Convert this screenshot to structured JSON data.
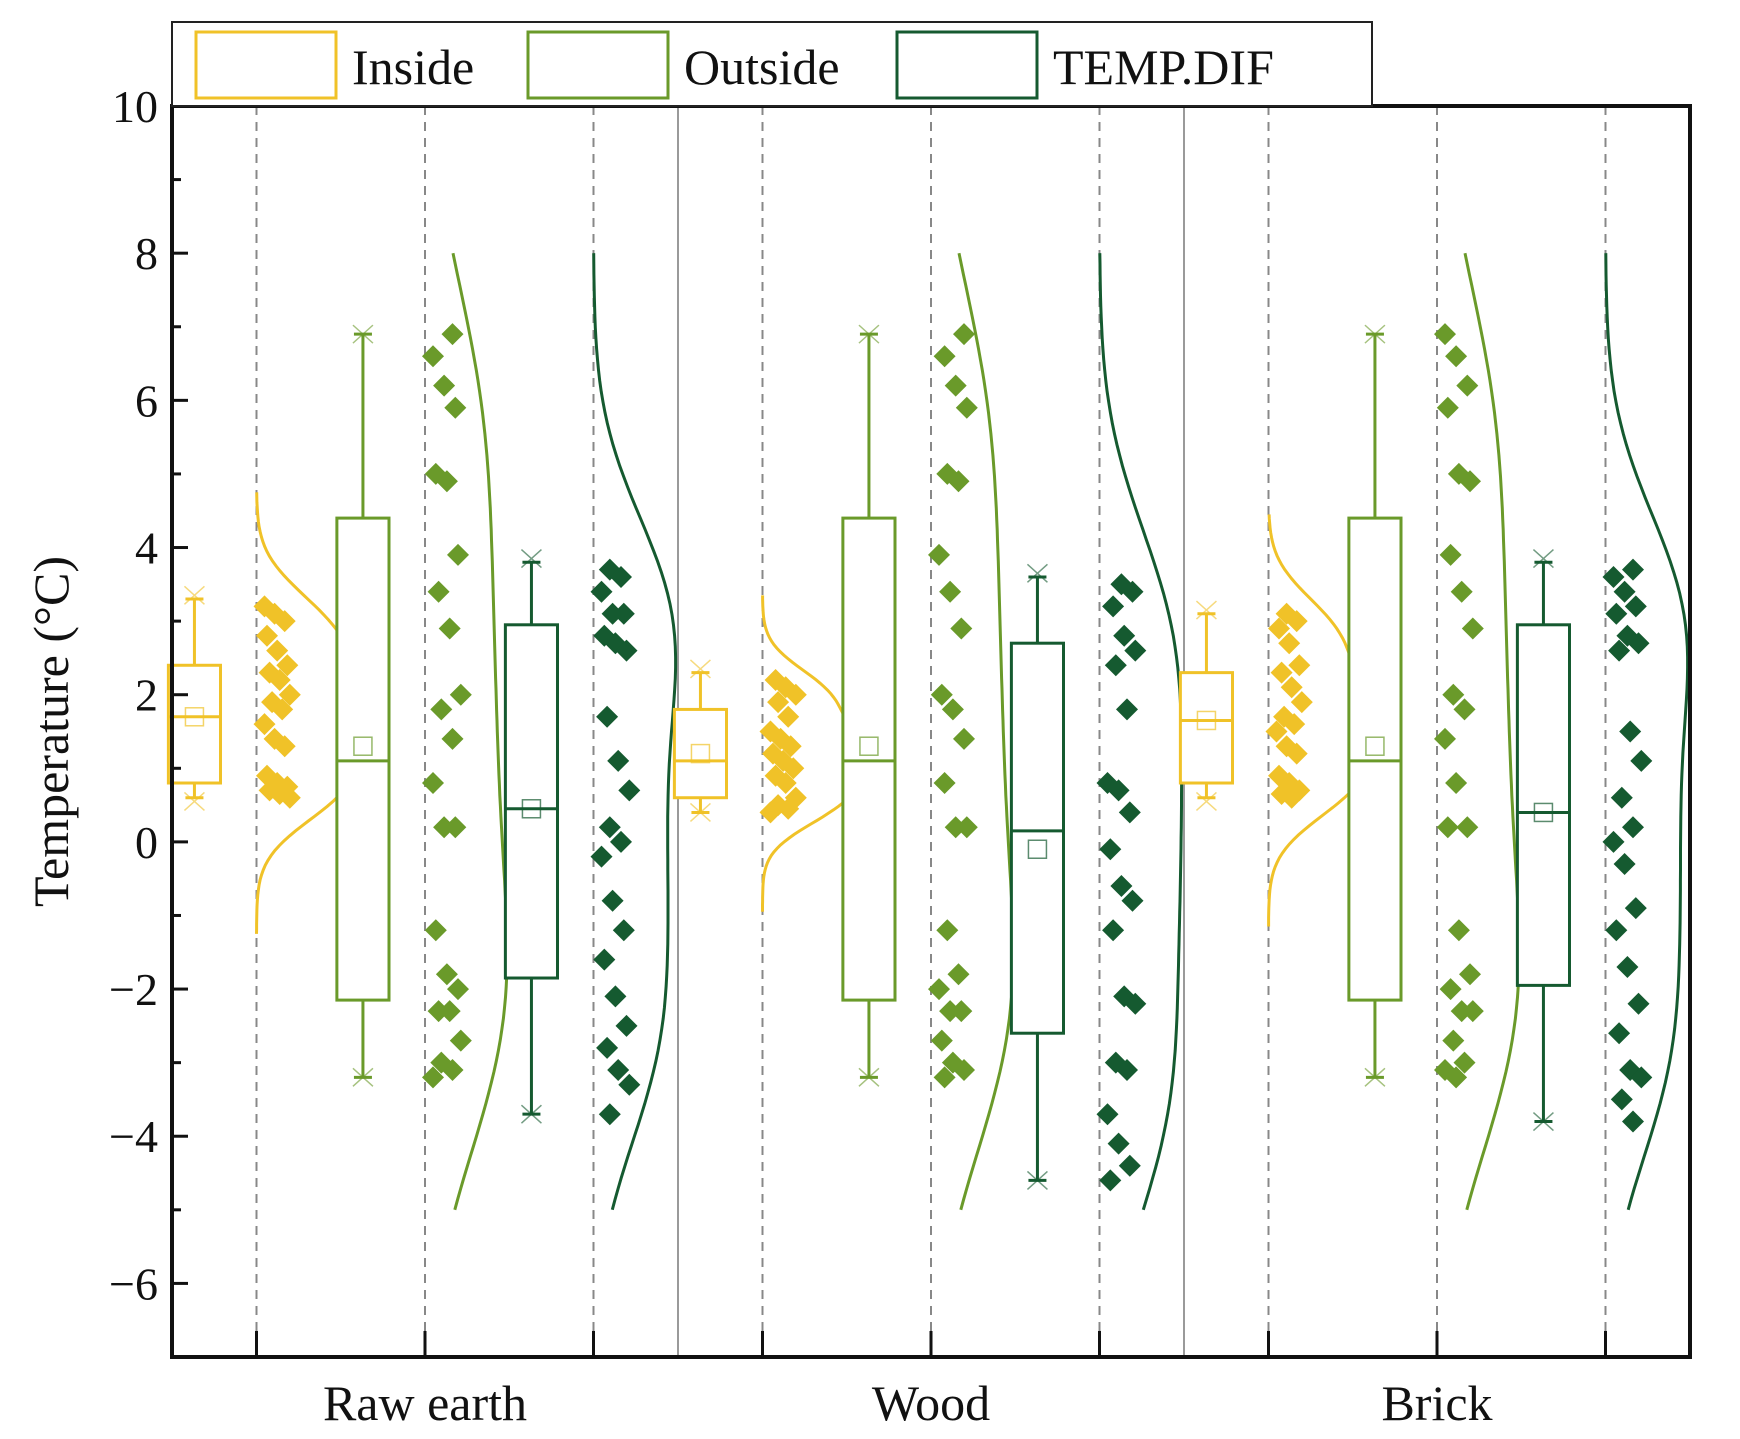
{
  "chart_data": {
    "type": "raincloud_box",
    "ylabel": "Temperature (°C)",
    "xlabel": "",
    "ylim": [
      -7,
      10
    ],
    "yticks": [
      -6,
      -4,
      -2,
      0,
      2,
      4,
      6,
      8,
      10
    ],
    "ytick_labels": [
      "−6",
      "−4",
      "−2",
      "0",
      "2",
      "4",
      "6",
      "8",
      "10"
    ],
    "categories": [
      "Raw earth",
      "Wood",
      "Brick"
    ],
    "legend": {
      "position": "top",
      "entries": [
        "Inside",
        "Outside",
        "TEMP.DIF"
      ]
    },
    "colors": {
      "Inside": "#f0c228",
      "Outside": "#6a9a2a",
      "TEMP.DIF": "#155a30"
    },
    "groups": [
      {
        "category": "Raw earth",
        "series": [
          {
            "name": "Inside",
            "box": {
              "q1": 0.8,
              "median": 1.7,
              "q3": 2.4,
              "whisker_low": 0.6,
              "whisker_high": 3.3,
              "mean": 1.7,
              "min": 0.55,
              "max": 3.35
            },
            "points": [
              3.2,
              3.1,
              3.0,
              2.8,
              2.6,
              2.4,
              2.3,
              2.2,
              2.0,
              1.9,
              1.8,
              1.6,
              1.4,
              1.3,
              0.9,
              0.8,
              0.75,
              0.7,
              0.65,
              0.6
            ],
            "density_range": [
              -1.25,
              4.75
            ]
          },
          {
            "name": "Outside",
            "box": {
              "q1": -2.15,
              "median": 1.1,
              "q3": 4.4,
              "whisker_low": -3.2,
              "whisker_high": 6.9,
              "mean": 1.3,
              "min": -3.2,
              "max": 6.9
            },
            "points": [
              6.9,
              6.6,
              6.2,
              5.9,
              5.0,
              4.9,
              3.9,
              3.4,
              2.9,
              2.0,
              1.8,
              1.4,
              0.8,
              0.2,
              0.2,
              -1.2,
              -1.8,
              -2.0,
              -2.3,
              -2.3,
              -2.7,
              -3.0,
              -3.1,
              -3.2
            ],
            "density_range": [
              -5.0,
              8.0
            ]
          },
          {
            "name": "TEMP.DIF",
            "box": {
              "q1": -1.85,
              "median": 0.45,
              "q3": 2.95,
              "whisker_low": -3.7,
              "whisker_high": 3.8,
              "mean": 0.45,
              "min": -3.7,
              "max": 3.85
            },
            "points": [
              3.7,
              3.6,
              3.4,
              3.1,
              3.1,
              2.8,
              2.7,
              2.6,
              1.7,
              1.1,
              0.7,
              0.2,
              0.0,
              -0.2,
              -0.8,
              -1.2,
              -1.6,
              -2.1,
              -2.5,
              -2.8,
              -3.1,
              -3.3,
              -3.7
            ],
            "density_range": [
              -5.0,
              8.0
            ]
          }
        ]
      },
      {
        "category": "Wood",
        "series": [
          {
            "name": "Inside",
            "box": {
              "q1": 0.6,
              "median": 1.1,
              "q3": 1.8,
              "whisker_low": 0.4,
              "whisker_high": 2.3,
              "mean": 1.2,
              "min": 0.4,
              "max": 2.35
            },
            "points": [
              2.2,
              2.1,
              2.0,
              1.9,
              1.7,
              1.5,
              1.4,
              1.3,
              1.2,
              1.1,
              1.0,
              0.9,
              0.8,
              0.6,
              0.5,
              0.45,
              0.4
            ],
            "density_range": [
              -0.95,
              3.35
            ]
          },
          {
            "name": "Outside",
            "box": {
              "q1": -2.15,
              "median": 1.1,
              "q3": 4.4,
              "whisker_low": -3.2,
              "whisker_high": 6.9,
              "mean": 1.3,
              "min": -3.2,
              "max": 6.9
            },
            "points": [
              6.9,
              6.6,
              6.2,
              5.9,
              5.0,
              4.9,
              3.9,
              3.4,
              2.9,
              2.0,
              1.8,
              1.4,
              0.8,
              0.2,
              0.2,
              -1.2,
              -1.8,
              -2.0,
              -2.3,
              -2.3,
              -2.7,
              -3.0,
              -3.1,
              -3.2
            ],
            "density_range": [
              -5.0,
              8.0
            ]
          },
          {
            "name": "TEMP.DIF",
            "box": {
              "q1": -2.6,
              "median": 0.15,
              "q3": 2.7,
              "whisker_low": -4.6,
              "whisker_high": 3.6,
              "mean": -0.1,
              "min": -4.6,
              "max": 3.65
            },
            "points": [
              3.5,
              3.4,
              3.2,
              2.8,
              2.6,
              2.4,
              1.8,
              0.8,
              0.7,
              0.4,
              -0.1,
              -0.6,
              -0.8,
              -1.2,
              -2.1,
              -2.2,
              -3.0,
              -3.1,
              -3.7,
              -4.1,
              -4.4,
              -4.6
            ],
            "density_range": [
              -5.0,
              8.0
            ]
          }
        ]
      },
      {
        "category": "Brick",
        "series": [
          {
            "name": "Inside",
            "box": {
              "q1": 0.8,
              "median": 1.65,
              "q3": 2.3,
              "whisker_low": 0.6,
              "whisker_high": 3.1,
              "mean": 1.65,
              "min": 0.55,
              "max": 3.15
            },
            "points": [
              3.1,
              3.0,
              2.9,
              2.7,
              2.4,
              2.3,
              2.1,
              1.9,
              1.7,
              1.6,
              1.5,
              1.3,
              1.2,
              0.9,
              0.8,
              0.7,
              0.65,
              0.6
            ],
            "density_range": [
              -1.15,
              4.45
            ]
          },
          {
            "name": "Outside",
            "box": {
              "q1": -2.15,
              "median": 1.1,
              "q3": 4.4,
              "whisker_low": -3.2,
              "whisker_high": 6.9,
              "mean": 1.3,
              "min": -3.2,
              "max": 6.9
            },
            "points": [
              6.9,
              6.6,
              6.2,
              5.9,
              5.0,
              4.9,
              3.9,
              3.4,
              2.9,
              2.0,
              1.8,
              1.4,
              0.8,
              0.2,
              0.2,
              -1.2,
              -1.8,
              -2.0,
              -2.3,
              -2.3,
              -2.7,
              -3.0,
              -3.1,
              -3.2
            ],
            "density_range": [
              -5.0,
              8.0
            ]
          },
          {
            "name": "TEMP.DIF",
            "box": {
              "q1": -1.95,
              "median": 0.4,
              "q3": 2.95,
              "whisker_low": -3.8,
              "whisker_high": 3.8,
              "mean": 0.4,
              "min": -3.8,
              "max": 3.85
            },
            "points": [
              3.7,
              3.6,
              3.4,
              3.2,
              3.1,
              2.8,
              2.7,
              2.6,
              1.5,
              1.1,
              0.6,
              0.2,
              0.0,
              -0.3,
              -0.9,
              -1.2,
              -1.7,
              -2.2,
              -2.6,
              -3.1,
              -3.2,
              -3.5,
              -3.8
            ],
            "density_range": [
              -5.0,
              8.0
            ]
          }
        ]
      }
    ]
  }
}
